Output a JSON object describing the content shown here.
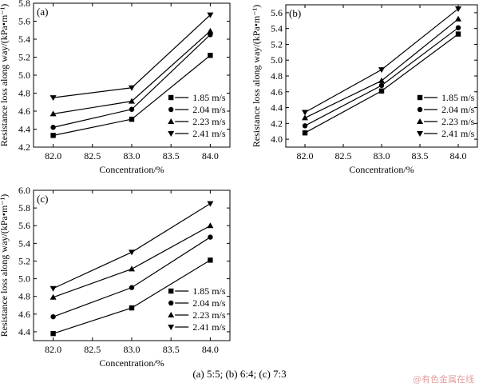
{
  "figure": {
    "caption": "(a) 5:5; (b) 6:4; (c) 7:3",
    "watermark": "@有色金属在线"
  },
  "chart_data": [
    {
      "type": "line",
      "panel_label": "(a)",
      "xlabel": "Concentration/%",
      "ylabel": "Resistance loss along way/(kPa•m⁻¹)",
      "xlim": [
        81.75,
        84.25
      ],
      "ylim": [
        4.2,
        5.8
      ],
      "x_ticks": [
        "82.0",
        "82.5",
        "83.0",
        "83.5",
        "84.0"
      ],
      "y_ticks": [
        "4.2",
        "4.4",
        "4.6",
        "4.8",
        "5.0",
        "5.2",
        "5.4",
        "5.6",
        "5.8"
      ],
      "x": [
        82.0,
        83.0,
        84.0
      ],
      "legend_position": "bottom-right",
      "series": [
        {
          "name": "1.85 m/s",
          "marker": "square",
          "values": [
            4.33,
            4.51,
            5.22
          ]
        },
        {
          "name": "2.04 m/s",
          "marker": "circle",
          "values": [
            4.42,
            4.62,
            5.45
          ]
        },
        {
          "name": "2.23 m/s",
          "marker": "triangle-up",
          "values": [
            4.57,
            4.71,
            5.49
          ]
        },
        {
          "name": "2.41 m/s",
          "marker": "triangle-down",
          "values": [
            4.75,
            4.86,
            5.67
          ]
        }
      ]
    },
    {
      "type": "line",
      "panel_label": "(b)",
      "xlabel": "Concentration/%",
      "ylabel": "Resistance loss along way/(kPa•m⁻¹)",
      "xlim": [
        81.75,
        84.25
      ],
      "ylim": [
        3.9,
        5.7
      ],
      "x_ticks": [
        "82.0",
        "82.5",
        "83.0",
        "83.5",
        "84.0"
      ],
      "y_ticks": [
        "4.0",
        "4.2",
        "4.4",
        "4.6",
        "4.8",
        "5.0",
        "5.2",
        "5.4",
        "5.6"
      ],
      "x": [
        82.0,
        83.0,
        84.0
      ],
      "legend_position": "bottom-right",
      "series": [
        {
          "name": "1.85 m/s",
          "marker": "square",
          "values": [
            4.08,
            4.61,
            5.33
          ]
        },
        {
          "name": "2.04 m/s",
          "marker": "circle",
          "values": [
            4.17,
            4.68,
            5.41
          ]
        },
        {
          "name": "2.23 m/s",
          "marker": "triangle-up",
          "values": [
            4.27,
            4.74,
            5.52
          ]
        },
        {
          "name": "2.41 m/s",
          "marker": "triangle-down",
          "values": [
            4.34,
            4.88,
            5.65
          ]
        }
      ]
    },
    {
      "type": "line",
      "panel_label": "(c)",
      "xlabel": "Concentration/%",
      "ylabel": "Resistance loss along way/(kPa•m⁻¹)",
      "xlim": [
        81.75,
        84.25
      ],
      "ylim": [
        4.3,
        6.0
      ],
      "x_ticks": [
        "82.0",
        "82.5",
        "83.0",
        "83.5",
        "84.0"
      ],
      "y_ticks": [
        "4.4",
        "4.6",
        "4.8",
        "5.0",
        "5.2",
        "5.4",
        "5.6",
        "5.8",
        "6.0"
      ],
      "x": [
        82.0,
        83.0,
        84.0
      ],
      "legend_position": "bottom-right",
      "series": [
        {
          "name": "1.85 m/s",
          "marker": "square",
          "values": [
            4.38,
            4.67,
            5.21
          ]
        },
        {
          "name": "2.04 m/s",
          "marker": "circle",
          "values": [
            4.57,
            4.9,
            5.47
          ]
        },
        {
          "name": "2.23 m/s",
          "marker": "triangle-up",
          "values": [
            4.79,
            5.11,
            5.6
          ]
        },
        {
          "name": "2.41 m/s",
          "marker": "triangle-down",
          "values": [
            4.89,
            5.3,
            5.85
          ]
        }
      ]
    }
  ]
}
